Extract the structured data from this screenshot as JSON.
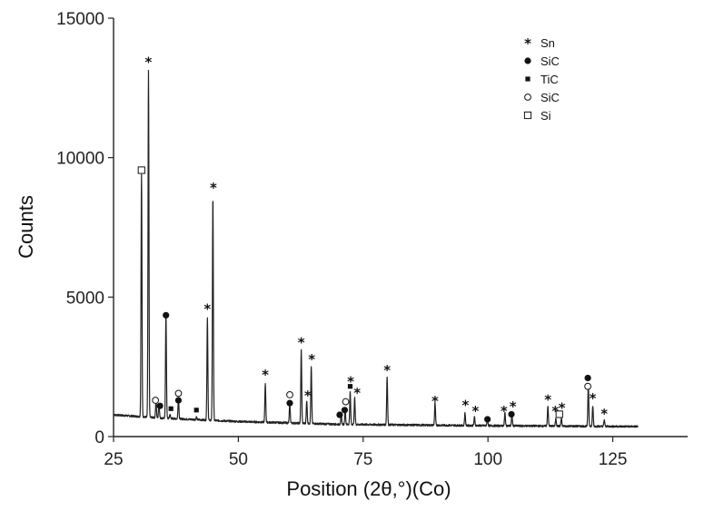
{
  "chart_data": {
    "type": "line",
    "xlabel": "Position (2θ,°)(Co)",
    "ylabel": "Counts",
    "xlim": [
      25,
      140
    ],
    "ylim": [
      0,
      15000
    ],
    "x_ticks": [
      25,
      50,
      75,
      100,
      125
    ],
    "y_ticks": [
      0,
      5000,
      10000,
      15000
    ],
    "grid": false,
    "legend_position": "top-right",
    "legend": [
      {
        "symbol": "star",
        "label": "Sn"
      },
      {
        "symbol": "filled-circle",
        "label": "SiC"
      },
      {
        "symbol": "filled-square",
        "label": "TiC"
      },
      {
        "symbol": "open-circle",
        "label": "SiC"
      },
      {
        "symbol": "open-square",
        "label": "Si"
      }
    ],
    "baseline": [
      [
        25,
        780
      ],
      [
        35,
        660
      ],
      [
        50,
        540
      ],
      [
        70,
        440
      ],
      [
        100,
        390
      ],
      [
        130,
        360
      ]
    ],
    "peaks": [
      {
        "x": 30.6,
        "y": 9400
      },
      {
        "x": 32.0,
        "y": 13100
      },
      {
        "x": 33.5,
        "y": 1250
      },
      {
        "x": 34.1,
        "y": 1200
      },
      {
        "x": 35.5,
        "y": 4400
      },
      {
        "x": 36.3,
        "y": 800
      },
      {
        "x": 38.0,
        "y": 1400
      },
      {
        "x": 41.6,
        "y": 700
      },
      {
        "x": 43.8,
        "y": 4250
      },
      {
        "x": 44.9,
        "y": 8600
      },
      {
        "x": 55.4,
        "y": 1900
      },
      {
        "x": 60.3,
        "y": 1200
      },
      {
        "x": 62.6,
        "y": 3100
      },
      {
        "x": 63.7,
        "y": 1300
      },
      {
        "x": 64.6,
        "y": 2500
      },
      {
        "x": 70.6,
        "y": 800
      },
      {
        "x": 71.4,
        "y": 950
      },
      {
        "x": 72.4,
        "y": 1600
      },
      {
        "x": 73.3,
        "y": 1400
      },
      {
        "x": 79.8,
        "y": 2150
      },
      {
        "x": 89.4,
        "y": 1200
      },
      {
        "x": 95.4,
        "y": 850
      },
      {
        "x": 97.3,
        "y": 700
      },
      {
        "x": 99.9,
        "y": 600
      },
      {
        "x": 103.4,
        "y": 850
      },
      {
        "x": 104.8,
        "y": 750
      },
      {
        "x": 112.0,
        "y": 1100
      },
      {
        "x": 113.6,
        "y": 650
      },
      {
        "x": 114.7,
        "y": 650
      },
      {
        "x": 120.1,
        "y": 1900
      },
      {
        "x": 121.0,
        "y": 1100
      },
      {
        "x": 123.3,
        "y": 600
      }
    ],
    "markers": [
      {
        "symbol": "open-square",
        "x": 30.6,
        "y": 9550
      },
      {
        "symbol": "star",
        "x": 32.0,
        "y": 13450
      },
      {
        "symbol": "open-circle",
        "x": 33.4,
        "y": 1300
      },
      {
        "symbol": "filled-circle",
        "x": 34.3,
        "y": 1100
      },
      {
        "symbol": "filled-circle",
        "x": 35.5,
        "y": 4350
      },
      {
        "symbol": "filled-square",
        "x": 36.5,
        "y": 1000
      },
      {
        "symbol": "open-circle",
        "x": 38.0,
        "y": 1550
      },
      {
        "symbol": "filled-circle",
        "x": 38.0,
        "y": 1300
      },
      {
        "symbol": "filled-square",
        "x": 41.6,
        "y": 950
      },
      {
        "symbol": "star",
        "x": 43.8,
        "y": 4600
      },
      {
        "symbol": "star",
        "x": 45.0,
        "y": 8950
      },
      {
        "symbol": "star",
        "x": 55.4,
        "y": 2250
      },
      {
        "symbol": "open-circle",
        "x": 60.3,
        "y": 1500
      },
      {
        "symbol": "filled-circle",
        "x": 60.3,
        "y": 1200
      },
      {
        "symbol": "star",
        "x": 62.6,
        "y": 3400
      },
      {
        "symbol": "star",
        "x": 63.9,
        "y": 1500
      },
      {
        "symbol": "star",
        "x": 64.7,
        "y": 2800
      },
      {
        "symbol": "filled-circle",
        "x": 70.3,
        "y": 780
      },
      {
        "symbol": "filled-circle",
        "x": 71.3,
        "y": 950
      },
      {
        "symbol": "open-circle",
        "x": 71.5,
        "y": 1250
      },
      {
        "symbol": "filled-square",
        "x": 72.4,
        "y": 1800
      },
      {
        "symbol": "star",
        "x": 72.5,
        "y": 2000
      },
      {
        "symbol": "star",
        "x": 73.8,
        "y": 1600
      },
      {
        "symbol": "star",
        "x": 79.8,
        "y": 2400
      },
      {
        "symbol": "star",
        "x": 89.4,
        "y": 1300
      },
      {
        "symbol": "star",
        "x": 95.5,
        "y": 1150
      },
      {
        "symbol": "star",
        "x": 97.5,
        "y": 950
      },
      {
        "symbol": "filled-circle",
        "x": 99.9,
        "y": 620
      },
      {
        "symbol": "star",
        "x": 103.2,
        "y": 950
      },
      {
        "symbol": "star",
        "x": 105.0,
        "y": 1100
      },
      {
        "symbol": "filled-circle",
        "x": 104.7,
        "y": 800
      },
      {
        "symbol": "star",
        "x": 112.0,
        "y": 1350
      },
      {
        "symbol": "star",
        "x": 113.5,
        "y": 950
      },
      {
        "symbol": "open-square",
        "x": 114.3,
        "y": 800
      },
      {
        "symbol": "star",
        "x": 114.8,
        "y": 1050
      },
      {
        "symbol": "filled-circle",
        "x": 120.0,
        "y": 2100
      },
      {
        "symbol": "open-circle",
        "x": 120.0,
        "y": 1800
      },
      {
        "symbol": "star",
        "x": 121.0,
        "y": 1400
      },
      {
        "symbol": "star",
        "x": 123.3,
        "y": 850
      }
    ]
  }
}
